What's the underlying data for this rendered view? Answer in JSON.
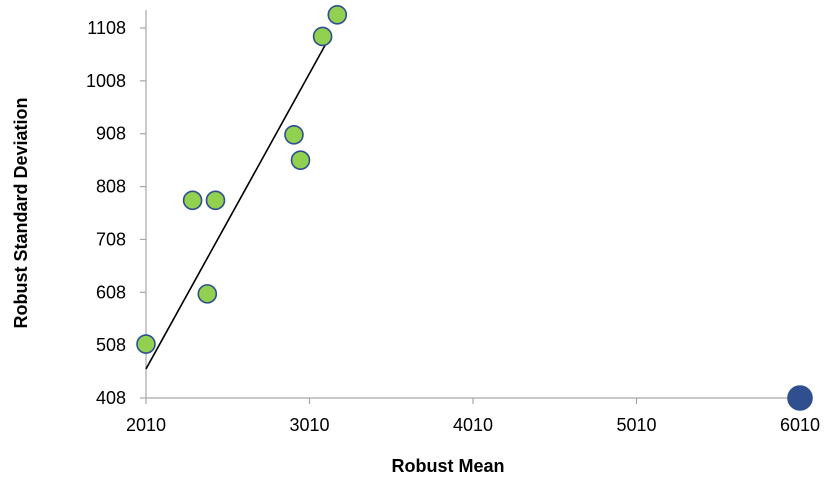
{
  "chart_data": {
    "type": "scatter",
    "title": "",
    "xlabel": "Robust Mean",
    "ylabel": "Robust Standard Deviation",
    "xlim": [
      2010,
      6010
    ],
    "ylim": [
      408,
      1108
    ],
    "xticks": [
      2010,
      3010,
      4010,
      5010,
      6010
    ],
    "yticks": [
      408,
      508,
      608,
      708,
      808,
      908,
      1008,
      1108
    ],
    "grid": false,
    "legend": "none",
    "series": [
      {
        "color": "#92D050",
        "stroke": "#2F4F8F",
        "points": [
          {
            "x": 2010,
            "y": 510
          },
          {
            "x": 2295,
            "y": 782
          },
          {
            "x": 2385,
            "y": 605
          },
          {
            "x": 2435,
            "y": 782
          },
          {
            "x": 2915,
            "y": 906
          },
          {
            "x": 2955,
            "y": 858
          },
          {
            "x": 3090,
            "y": 1092
          },
          {
            "x": 3180,
            "y": 1133
          }
        ]
      },
      {
        "color": "#2F4F8F",
        "stroke": "#2F4F8F",
        "points": [
          {
            "x": 6010,
            "y": 408
          }
        ]
      }
    ],
    "trendline": {
      "color": "#000000",
      "from": {
        "x": 2010,
        "y": 463
      },
      "to": {
        "x": 3110,
        "y": 1078
      }
    }
  }
}
